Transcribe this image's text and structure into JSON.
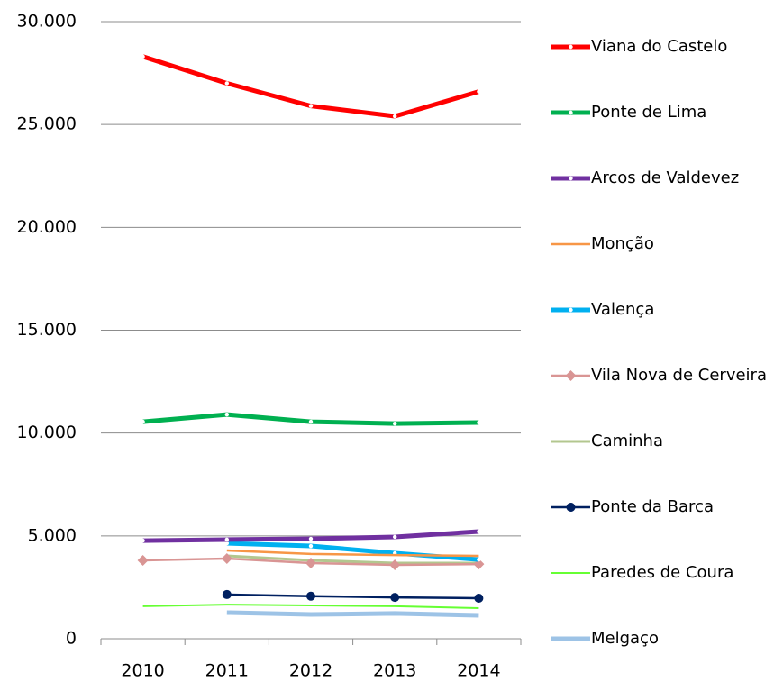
{
  "chart_data": {
    "type": "line",
    "categories": [
      "2010",
      "2011",
      "2012",
      "2013",
      "2014"
    ],
    "series": [
      {
        "name": "Viana do Castelo",
        "color": "#ff0000",
        "line_width": 5,
        "marker": "dot",
        "values": [
          28300,
          27000,
          25900,
          25400,
          26600
        ]
      },
      {
        "name": "Ponte de Lima",
        "color": "#00b050",
        "line_width": 5,
        "marker": "dot",
        "values": [
          10550,
          10900,
          10550,
          10460,
          10510
        ]
      },
      {
        "name": "Arcos de Valdevez",
        "color": "#7030a0",
        "line_width": 5,
        "marker": "dot",
        "values": [
          4770,
          4820,
          4860,
          4950,
          5210
        ]
      },
      {
        "name": "Monção",
        "color": "#f79646",
        "line_width": 2.5,
        "marker": "none",
        "values": [
          null,
          4290,
          4120,
          4070,
          4030
        ]
      },
      {
        "name": "Valença",
        "color": "#00b0f0",
        "line_width": 5,
        "marker": "dot",
        "values": [
          null,
          4640,
          4510,
          4160,
          3850
        ]
      },
      {
        "name": "Vila Nova de Cerveira",
        "color": "#d99594",
        "line_width": 2.5,
        "marker": "diamond",
        "values": [
          3810,
          3900,
          3680,
          3590,
          3630
        ]
      },
      {
        "name": "Caminha",
        "color": "#b3c78f",
        "line_width": 3,
        "marker": "none",
        "values": [
          null,
          4030,
          3810,
          3680,
          3680
        ]
      },
      {
        "name": "Ponte da Barca",
        "color": "#002060",
        "line_width": 2.5,
        "marker": "circle",
        "values": [
          null,
          2150,
          2070,
          2010,
          1970
        ]
      },
      {
        "name": "Paredes de Coura",
        "color": "#66ff33",
        "line_width": 2,
        "marker": "none",
        "values": [
          1580,
          1660,
          1620,
          1580,
          1490
        ]
      },
      {
        "name": "Melgaço",
        "color": "#9dc3e6",
        "line_width": 5,
        "marker": "none",
        "values": [
          null,
          1270,
          1180,
          1230,
          1140
        ]
      }
    ],
    "ylim": [
      0,
      30000
    ],
    "yticks": [
      0,
      {
        "value": 5000,
        "label": "5.000"
      },
      {
        "value": 10000,
        "label": "10.000"
      },
      {
        "value": 15000,
        "label": "15.000"
      },
      {
        "value": 20000,
        "label": "20.000"
      },
      {
        "value": 25000,
        "label": "25.000"
      },
      {
        "value": 30000,
        "label": "30.000"
      }
    ],
    "grid": true,
    "legend": "right"
  }
}
